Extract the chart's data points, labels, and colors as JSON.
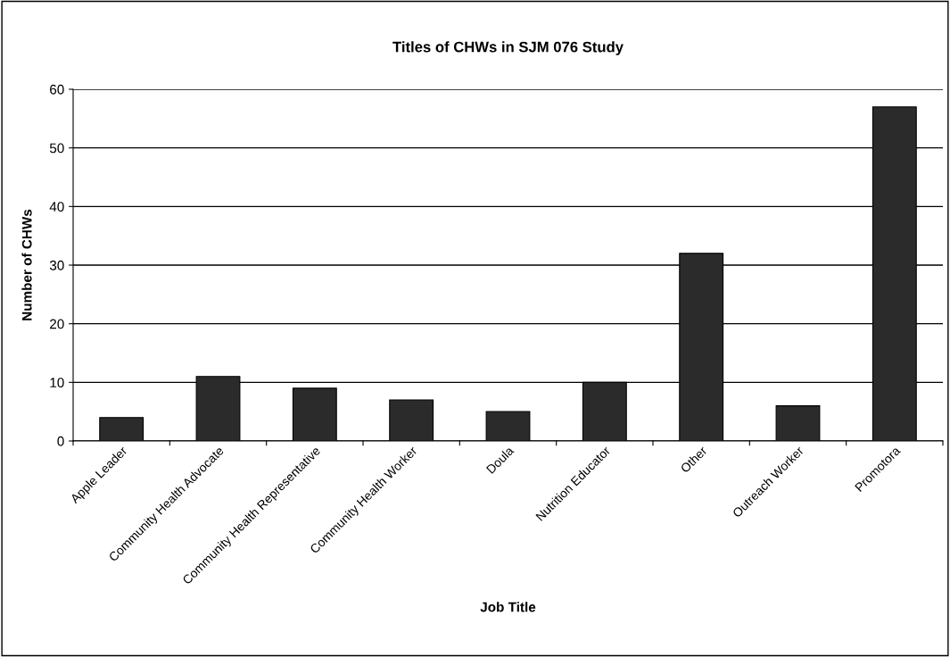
{
  "chart_data": {
    "type": "bar",
    "title": "Titles of CHWs in SJM 076 Study",
    "xlabel": "Job Title",
    "ylabel": "Number of CHWs",
    "categories": [
      "Apple Leader",
      "Community Health Advocate",
      "Community Health Representative",
      "Community Health Worker",
      "Doula",
      "Nutrition Educator",
      "Other",
      "Outreach Worker",
      "Promotora"
    ],
    "values": [
      4,
      11,
      9,
      7,
      5,
      10,
      32,
      6,
      57
    ],
    "color": "#2b2b2b",
    "ylim": [
      0,
      60
    ],
    "yticks": [
      0,
      10,
      20,
      30,
      40,
      50,
      60
    ],
    "grid": "y",
    "legend": false
  }
}
